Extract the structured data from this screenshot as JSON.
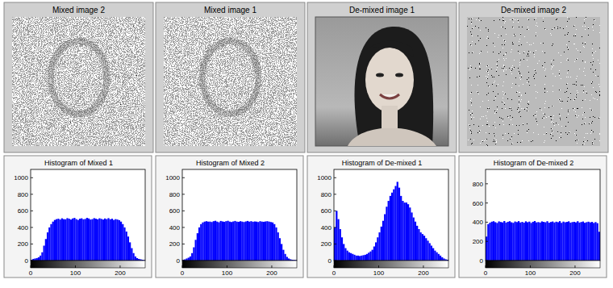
{
  "panels": [
    {
      "title": "Mixed image 2"
    },
    {
      "title": "Mixed image 1"
    },
    {
      "title": "De-mixed image 1"
    },
    {
      "title": "De-mixed image 2"
    }
  ],
  "chart_data": [
    {
      "type": "histogram",
      "title": "Histogram of Mixed 1",
      "color": "#0000ff",
      "bins": [
        0,
        4,
        8,
        12,
        16,
        20,
        24,
        28,
        32,
        36,
        40,
        44,
        48,
        52,
        56,
        60,
        64,
        68,
        72,
        76,
        80,
        84,
        88,
        92,
        96,
        100,
        104,
        108,
        112,
        116,
        120,
        124,
        128,
        132,
        136,
        140,
        144,
        148,
        152,
        156,
        160,
        164,
        168,
        172,
        176,
        180,
        184,
        188,
        192,
        196,
        200,
        204,
        208,
        212,
        216,
        220,
        224,
        228,
        232,
        236,
        240,
        244,
        248,
        252,
        256
      ],
      "counts": [
        10,
        20,
        25,
        30,
        40,
        60,
        100,
        180,
        260,
        340,
        400,
        440,
        470,
        490,
        500,
        505,
        495,
        510,
        500,
        498,
        512,
        505,
        495,
        508,
        515,
        500,
        490,
        505,
        510,
        498,
        502,
        515,
        508,
        495,
        500,
        512,
        505,
        498,
        510,
        503,
        495,
        508,
        500,
        512,
        498,
        505,
        490,
        500,
        495,
        488,
        470,
        440,
        400,
        350,
        290,
        220,
        150,
        90,
        50,
        30,
        20,
        15,
        10,
        5
      ],
      "xlim": [
        0,
        256
      ],
      "xticks": [
        0,
        100,
        200
      ],
      "ylim": [
        0,
        1100
      ],
      "yticks": [
        0,
        200,
        400,
        600,
        800,
        1000
      ]
    },
    {
      "type": "histogram",
      "title": "Histogram of Mixed 2",
      "color": "#0000ff",
      "bins": [
        0,
        4,
        8,
        12,
        16,
        20,
        24,
        28,
        32,
        36,
        40,
        44,
        48,
        52,
        56,
        60,
        64,
        68,
        72,
        76,
        80,
        84,
        88,
        92,
        96,
        100,
        104,
        108,
        112,
        116,
        120,
        124,
        128,
        132,
        136,
        140,
        144,
        148,
        152,
        156,
        160,
        164,
        168,
        172,
        176,
        180,
        184,
        188,
        192,
        196,
        200,
        204,
        208,
        212,
        216,
        220,
        224,
        228,
        232,
        236,
        240,
        244,
        248,
        252,
        256
      ],
      "counts": [
        10,
        15,
        25,
        35,
        50,
        90,
        160,
        250,
        330,
        400,
        440,
        460,
        470,
        475,
        470,
        470,
        465,
        475,
        480,
        470,
        462,
        478,
        472,
        468,
        475,
        480,
        470,
        465,
        472,
        478,
        470,
        468,
        475,
        470,
        465,
        472,
        478,
        470,
        475,
        468,
        472,
        470,
        465,
        475,
        470,
        468,
        472,
        475,
        470,
        465,
        460,
        440,
        400,
        340,
        270,
        200,
        130,
        80,
        45,
        25,
        15,
        10,
        8,
        5
      ],
      "xlim": [
        0,
        256
      ],
      "xticks": [
        0,
        100,
        200
      ],
      "ylim": [
        0,
        1100
      ],
      "yticks": [
        0,
        200,
        400,
        600,
        800,
        1000
      ]
    },
    {
      "type": "histogram",
      "title": "Histogram of De-mixed 1",
      "color": "#0000ff",
      "bins": [
        0,
        4,
        8,
        12,
        16,
        20,
        24,
        28,
        32,
        36,
        40,
        44,
        48,
        52,
        56,
        60,
        64,
        68,
        72,
        76,
        80,
        84,
        88,
        92,
        96,
        100,
        104,
        108,
        112,
        116,
        120,
        124,
        128,
        132,
        136,
        140,
        144,
        148,
        152,
        156,
        160,
        164,
        168,
        172,
        176,
        180,
        184,
        188,
        192,
        196,
        200,
        204,
        208,
        212,
        216,
        220,
        224,
        228,
        232,
        236,
        240,
        244,
        248,
        252,
        256
      ],
      "counts": [
        400,
        600,
        500,
        380,
        280,
        200,
        150,
        120,
        100,
        90,
        80,
        70,
        60,
        60,
        55,
        60,
        65,
        70,
        80,
        95,
        110,
        130,
        170,
        220,
        280,
        340,
        410,
        480,
        560,
        650,
        720,
        780,
        820,
        860,
        900,
        950,
        880,
        780,
        720,
        700,
        700,
        680,
        640,
        580,
        520,
        470,
        420,
        380,
        340,
        320,
        300,
        270,
        240,
        210,
        180,
        150,
        120,
        100,
        80,
        60,
        40,
        25,
        15,
        10
      ],
      "xlim": [
        0,
        256
      ],
      "xticks": [
        0,
        100,
        200
      ],
      "ylim": [
        0,
        1100
      ],
      "yticks": [
        0,
        200,
        400,
        600,
        800,
        1000
      ]
    },
    {
      "type": "histogram",
      "title": "Histogram of De-mixed 2",
      "color": "#0000ff",
      "bins": [
        0,
        4,
        8,
        12,
        16,
        20,
        24,
        28,
        32,
        36,
        40,
        44,
        48,
        52,
        56,
        60,
        64,
        68,
        72,
        76,
        80,
        84,
        88,
        92,
        96,
        100,
        104,
        108,
        112,
        116,
        120,
        124,
        128,
        132,
        136,
        140,
        144,
        148,
        152,
        156,
        160,
        164,
        168,
        172,
        176,
        180,
        184,
        188,
        192,
        196,
        200,
        204,
        208,
        212,
        216,
        220,
        224,
        228,
        232,
        236,
        240,
        244,
        248,
        252,
        256
      ],
      "counts": [
        250,
        380,
        395,
        405,
        410,
        400,
        392,
        408,
        402,
        398,
        412,
        396,
        404,
        410,
        399,
        393,
        407,
        401,
        411,
        397,
        403,
        395,
        409,
        400,
        406,
        392,
        404,
        412,
        398,
        401,
        396,
        408,
        403,
        399,
        410,
        394,
        402,
        407,
        397,
        405,
        400,
        411,
        393,
        406,
        399,
        403,
        409,
        395,
        401,
        404,
        398,
        410,
        396,
        402,
        407,
        394,
        400,
        405,
        398,
        403,
        392,
        401,
        390,
        300
      ],
      "xlim": [
        0,
        256
      ],
      "xticks": [
        0,
        100,
        200
      ],
      "ylim": [
        0,
        950
      ],
      "yticks": [
        0,
        200,
        400,
        600,
        800
      ]
    }
  ]
}
